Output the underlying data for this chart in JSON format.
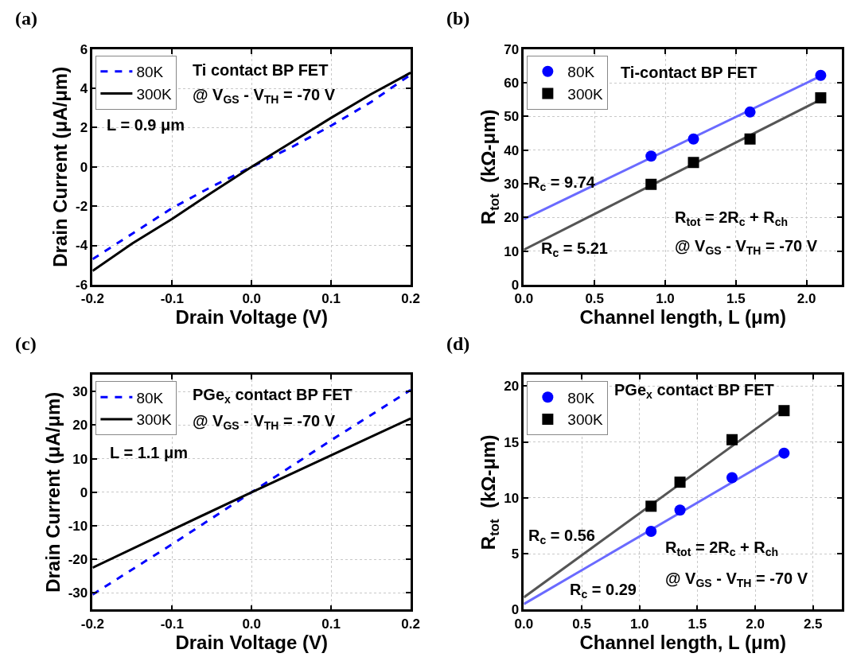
{
  "chart_data": [
    {
      "type": "line",
      "title": "(a)",
      "xlabel": "Drain Voltage (V)",
      "ylabel": "Drain Current (μA/μm)",
      "xlim": [
        -0.2,
        0.2
      ],
      "xticks": [
        -0.2,
        -0.1,
        {
          "value": 0,
          "label": "0.0"
        },
        0.1,
        0.2
      ],
      "ylim": [
        -6,
        6
      ],
      "yticks": [
        -6,
        -4,
        -2,
        0,
        2,
        4,
        6
      ],
      "grid": true,
      "legend": "top left",
      "annotations": [
        "Ti contact BP FET",
        "@ V$_{GS}$ - V$_{TH}$ = -70 V",
        "L = 0.9 μm"
      ],
      "series": [
        {
          "name": "80K",
          "color": "#0000ff",
          "line_style": "dashed",
          "x": [
            -0.2,
            -0.15,
            -0.1,
            -0.05,
            0,
            0.05,
            0.1,
            0.15,
            0.2
          ],
          "values": [
            -4.7,
            -3.4,
            -2.1,
            -1.0,
            0,
            1.0,
            2.1,
            3.3,
            4.7
          ]
        },
        {
          "name": "300K",
          "color": "#000000",
          "line_style": "solid",
          "x": [
            -0.2,
            -0.15,
            -0.1,
            -0.05,
            0,
            0.05,
            0.1,
            0.15,
            0.2
          ],
          "values": [
            -5.3,
            -3.9,
            -2.65,
            -1.3,
            0,
            1.25,
            2.5,
            3.7,
            4.8
          ]
        }
      ]
    },
    {
      "type": "scatter",
      "title": "(b)",
      "xlabel": "Channel length, L (μm)",
      "ylabel": "R$_{tot}$  (kΩ-μm)",
      "xlim": [
        0,
        2.25
      ],
      "xticks": [
        {
          "value": 0,
          "label": "0.0"
        },
        0.5,
        {
          "value": 1,
          "label": "1.0"
        },
        1.5,
        {
          "value": 2,
          "label": "2.0"
        }
      ],
      "ylim": [
        0,
        70
      ],
      "yticks": [
        0,
        10,
        20,
        30,
        40,
        50,
        60,
        70
      ],
      "grid": true,
      "legend": "top left",
      "annotations": [
        "Ti-contact BP FET",
        "R$_{c}$ = 9.74",
        "R$_{c}$ = 5.21",
        "R$_{tot}$ = 2R$_{c}$ + R$_{ch}$",
        "@ V$_{GS}$ - V$_{TH}$ = -70 V"
      ],
      "series": [
        {
          "type": "line",
          "color": "#6a6aff",
          "line_style": "solid",
          "x": [
            0,
            2.1
          ],
          "values": [
            19.5,
            62.0
          ]
        },
        {
          "type": "line",
          "color": "#555555",
          "line_style": "solid",
          "x": [
            0,
            2.1
          ],
          "values": [
            10.4,
            55.0
          ]
        },
        {
          "name": "80K",
          "color": "#0000ff",
          "marker": "circle",
          "x": [
            0.9,
            1.2,
            1.6,
            2.1
          ],
          "values": [
            38.2,
            43.3,
            51.3,
            62.2
          ]
        },
        {
          "name": "300K",
          "color": "#000000",
          "marker": "square",
          "x": [
            0.9,
            1.2,
            1.6,
            2.1
          ],
          "values": [
            29.8,
            36.3,
            43.3,
            55.5
          ]
        }
      ]
    },
    {
      "type": "line",
      "title": "(c)",
      "xlabel": "Drain Voltage (V)",
      "ylabel": "Drain Current (μA/μm)",
      "xlim": [
        -0.2,
        0.2
      ],
      "xticks": [
        -0.2,
        -0.1,
        {
          "value": 0,
          "label": "0.0"
        },
        0.1,
        0.2
      ],
      "ylim": [
        -35,
        35
      ],
      "yticks": [
        -30,
        -20,
        -10,
        0,
        10,
        20,
        30
      ],
      "grid": true,
      "legend": "top left",
      "annotations": [
        "PGe$_{x}$ contact BP FET",
        "@ V$_{GS}$ - V$_{TH}$ = -70 V",
        "L = 1.1 μm"
      ],
      "series": [
        {
          "name": "80K",
          "color": "#0000ff",
          "line_style": "dashed",
          "x": [
            -0.2,
            -0.1,
            0,
            0.1,
            0.2
          ],
          "values": [
            -30.5,
            -15.5,
            0,
            15.5,
            30.5
          ]
        },
        {
          "name": "300K",
          "color": "#000000",
          "line_style": "solid",
          "x": [
            -0.2,
            -0.1,
            0,
            0.1,
            0.2
          ],
          "values": [
            -22.5,
            -11.2,
            0,
            11.0,
            22.0
          ]
        }
      ]
    },
    {
      "type": "scatter",
      "title": "(d)",
      "xlabel": "Channel length, L (μm)",
      "ylabel": "R$_{tot}$  (kΩ-μm)",
      "xlim": [
        0,
        2.75
      ],
      "xticks": [
        {
          "value": 0,
          "label": "0.0"
        },
        0.5,
        {
          "value": 1,
          "label": "1.0"
        },
        1.5,
        {
          "value": 2,
          "label": "2.0"
        },
        2.5
      ],
      "ylim": [
        0,
        21
      ],
      "yticks": [
        0,
        5,
        10,
        15,
        20
      ],
      "grid": true,
      "legend": "top left",
      "annotations": [
        "PGe$_{x}$ contact BP FET",
        "R$_{c}$ = 0.56",
        "R$_{c}$ = 0.29",
        "R$_{tot}$ = 2R$_{c}$ + R$_{ch}$",
        "@ V$_{GS}$ - V$_{TH}$ = -70 V"
      ],
      "series": [
        {
          "type": "line",
          "color": "#555555",
          "line_style": "solid",
          "x": [
            0,
            2.25
          ],
          "values": [
            1.1,
            18.0
          ]
        },
        {
          "type": "line",
          "color": "#6a6aff",
          "line_style": "solid",
          "x": [
            0,
            2.25
          ],
          "values": [
            0.5,
            14.1
          ]
        },
        {
          "name": "80K",
          "color": "#0000ff",
          "marker": "circle",
          "x": [
            1.1,
            1.35,
            1.8,
            2.25
          ],
          "values": [
            7.0,
            8.9,
            11.8,
            14.0
          ]
        },
        {
          "name": "300K",
          "color": "#000000",
          "marker": "square",
          "x": [
            1.1,
            1.35,
            1.8,
            2.25
          ],
          "values": [
            9.25,
            11.4,
            15.2,
            17.8
          ]
        }
      ]
    }
  ]
}
